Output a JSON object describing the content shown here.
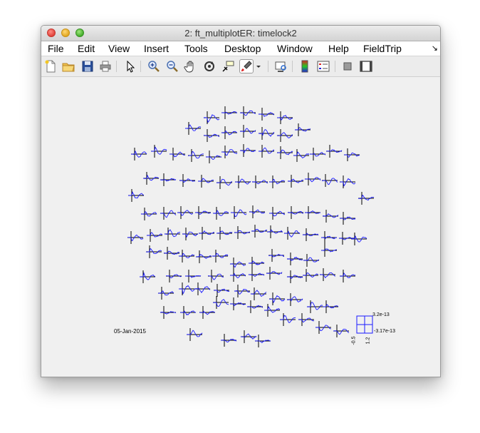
{
  "window": {
    "title": "2: ft_multiplotER: timelock2"
  },
  "menubar": {
    "items": [
      "File",
      "Edit",
      "View",
      "Insert",
      "Tools",
      "Desktop",
      "Window",
      "Help",
      "FieldTrip"
    ],
    "overflow_icon": "arrow-icon"
  },
  "toolbar": {
    "buttons": [
      {
        "name": "new-figure",
        "icon": "new-document-icon"
      },
      {
        "name": "open-file",
        "icon": "folder-icon"
      },
      {
        "name": "save",
        "icon": "save-icon"
      },
      {
        "name": "print",
        "icon": "printer-icon"
      },
      {
        "name": "edit-plot",
        "icon": "cursor-icon"
      },
      {
        "name": "zoom-in",
        "icon": "zoom-in-icon"
      },
      {
        "name": "zoom-out",
        "icon": "zoom-out-icon"
      },
      {
        "name": "pan",
        "icon": "hand-icon"
      },
      {
        "name": "rotate-3d",
        "icon": "rotate-icon"
      },
      {
        "name": "data-cursor",
        "icon": "data-cursor-icon"
      },
      {
        "name": "brush",
        "icon": "brush-icon",
        "active": true
      },
      {
        "name": "link-plot",
        "icon": "link-plot-icon"
      },
      {
        "name": "colorbar",
        "icon": "colorbar-icon"
      },
      {
        "name": "legend",
        "icon": "legend-icon"
      },
      {
        "name": "hide-plot-tools",
        "icon": "hide-tools-icon"
      },
      {
        "name": "show-plot-tools",
        "icon": "show-tools-icon"
      }
    ]
  },
  "figure": {
    "date": "05-Jan-2015",
    "scale": {
      "ymax": "3.2e-13",
      "ymin": "-3.17e-13",
      "xmin": "-0.5",
      "xmax": "1.2"
    }
  },
  "colors": {
    "trace": "#1a1aff",
    "axes": "#000000",
    "background": "#f0f0f0"
  }
}
